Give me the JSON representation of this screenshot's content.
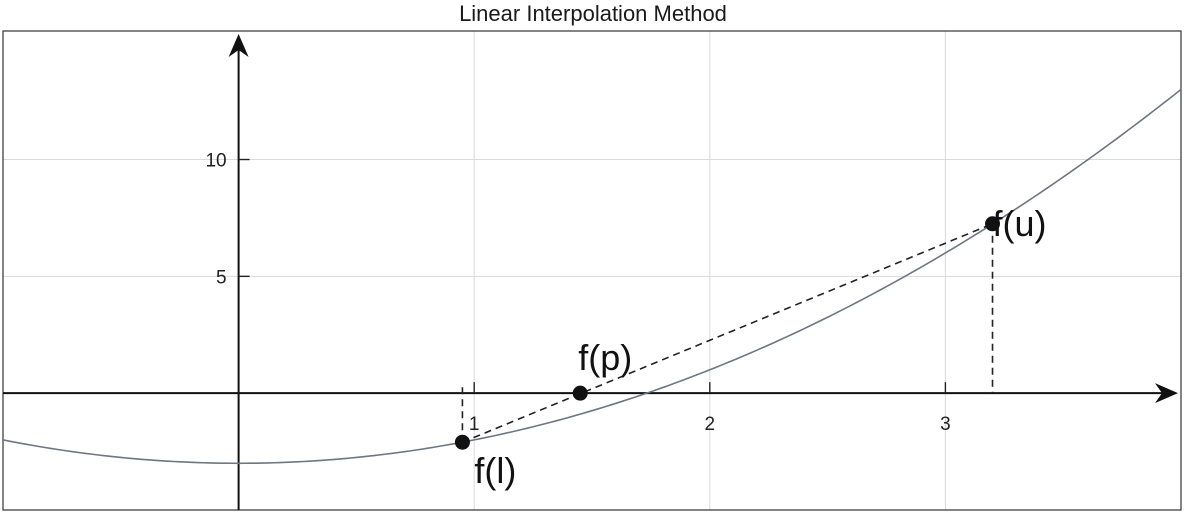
{
  "chart_data": {
    "type": "line",
    "title": "Linear Interpolation Method",
    "xlabel": "",
    "ylabel": "",
    "xlim": [
      -1.0,
      4.0
    ],
    "ylim": [
      -5.0,
      15.5
    ],
    "grid": true,
    "x_ticks": [
      1,
      2,
      3
    ],
    "x_tick_labels": [
      "1",
      "2",
      "3"
    ],
    "y_ticks": [
      5,
      10
    ],
    "y_tick_labels": [
      "5",
      "10"
    ],
    "series": [
      {
        "function": "x^2 - 3",
        "x": [
          -1.0,
          -0.5,
          0.0,
          0.5,
          1.0,
          1.5,
          2.0,
          2.5,
          3.0,
          3.5,
          4.0
        ],
        "y": [
          -2.0,
          -2.75,
          -3.0,
          -2.75,
          -2.0,
          -0.75,
          1.0,
          3.25,
          6.0,
          9.25,
          13.0
        ]
      }
    ],
    "points": [
      {
        "label": "f(l)",
        "x": 0.95,
        "y": -2.1
      },
      {
        "label": "f(p)",
        "x": 1.45,
        "y": 0.0
      },
      {
        "label": "f(u)",
        "x": 3.2,
        "y": 7.25
      }
    ]
  }
}
